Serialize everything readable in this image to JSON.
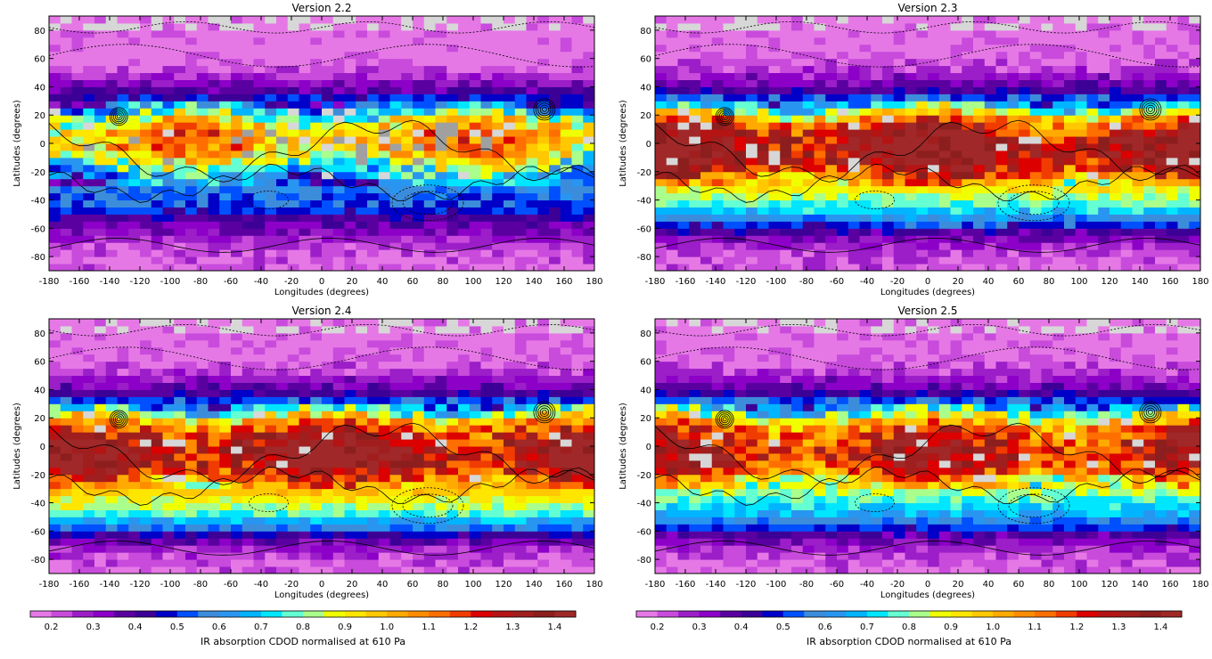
{
  "figure": {
    "colorbar_label": "IR absorption CDOD normalised at 610 Pa",
    "colorbar_ticks": [
      "0.2",
      "0.3",
      "0.4",
      "0.5",
      "0.6",
      "0.7",
      "0.8",
      "0.9",
      "1.0",
      "1.1",
      "1.2",
      "1.3",
      "1.4"
    ],
    "colorbar_levels": [
      0.15,
      0.2,
      0.25,
      0.3,
      0.35,
      0.4,
      0.45,
      0.5,
      0.55,
      0.6,
      0.65,
      0.7,
      0.75,
      0.8,
      0.85,
      0.9,
      0.95,
      1.0,
      1.05,
      1.1,
      1.15,
      1.2,
      1.25,
      1.3,
      1.35,
      1.4,
      1.5
    ],
    "colors": [
      "#e678e6",
      "#c84bdc",
      "#9b1ec8",
      "#8c00c8",
      "#5a00a0",
      "#3c0096",
      "#0000c8",
      "#0050ff",
      "#3c8cdc",
      "#2896f0",
      "#00b4ff",
      "#00e6ff",
      "#64ffd2",
      "#aaff8c",
      "#f0ff00",
      "#ffe600",
      "#ffc800",
      "#ffaa00",
      "#ff8c00",
      "#ff6e00",
      "#f03c00",
      "#dc0000",
      "#b41414",
      "#a01e1e",
      "#8c1e1e",
      "#a02828"
    ],
    "missing_color": "#d7d7d7",
    "missing_dark_color": "#a0a0a0"
  },
  "chart_data": [
    {
      "type": "heatmap",
      "title": "Version 2.2",
      "xlabel": "Longitudes (degrees)",
      "ylabel": "Latitudes (degrees)",
      "xlim": [
        -180,
        180
      ],
      "ylim": [
        -90,
        90
      ],
      "xticks": [
        "-180",
        "-160",
        "-140",
        "-120",
        "-100",
        "-80",
        "-60",
        "-40",
        "-20",
        "0",
        "20",
        "40",
        "60",
        "80",
        "100",
        "120",
        "140",
        "160",
        "180"
      ],
      "yticks": [
        "-80",
        "-60",
        "-40",
        "-20",
        "0",
        "20",
        "40",
        "60",
        "80"
      ],
      "lat_profile": [
        {
          "lat": 85,
          "value": 0.17
        },
        {
          "lat": 75,
          "value": 0.17
        },
        {
          "lat": 65,
          "value": 0.17
        },
        {
          "lat": 55,
          "value": 0.18
        },
        {
          "lat": 45,
          "value": 0.3
        },
        {
          "lat": 35,
          "value": 0.42
        },
        {
          "lat": 25,
          "value": 0.62
        },
        {
          "lat": 15,
          "value": 0.95
        },
        {
          "lat": 5,
          "value": 1.05
        },
        {
          "lat": -5,
          "value": 1.0
        },
        {
          "lat": -15,
          "value": 0.8
        },
        {
          "lat": -25,
          "value": 0.6
        },
        {
          "lat": -35,
          "value": 0.55
        },
        {
          "lat": -45,
          "value": 0.52
        },
        {
          "lat": -55,
          "value": 0.38
        },
        {
          "lat": -65,
          "value": 0.3
        },
        {
          "lat": -75,
          "value": 0.22
        },
        {
          "lat": -85,
          "value": 0.2
        }
      ]
    },
    {
      "type": "heatmap",
      "title": "Version 2.3",
      "xlabel": "Longitudes (degrees)",
      "ylabel": "Latitudes (degrees)",
      "xlim": [
        -180,
        180
      ],
      "ylim": [
        -90,
        90
      ],
      "xticks": [
        "-180",
        "-160",
        "-140",
        "-120",
        "-100",
        "-80",
        "-60",
        "-40",
        "-20",
        "0",
        "20",
        "40",
        "60",
        "80",
        "100",
        "120",
        "140",
        "160",
        "180"
      ],
      "yticks": [
        "-80",
        "-60",
        "-40",
        "-20",
        "0",
        "20",
        "40",
        "60",
        "80"
      ],
      "lat_profile": [
        {
          "lat": 85,
          "value": 0.16
        },
        {
          "lat": 75,
          "value": 0.17
        },
        {
          "lat": 65,
          "value": 0.18
        },
        {
          "lat": 55,
          "value": 0.22
        },
        {
          "lat": 45,
          "value": 0.32
        },
        {
          "lat": 35,
          "value": 0.45
        },
        {
          "lat": 25,
          "value": 0.75
        },
        {
          "lat": 15,
          "value": 1.15
        },
        {
          "lat": 5,
          "value": 1.32
        },
        {
          "lat": -5,
          "value": 1.38
        },
        {
          "lat": -15,
          "value": 1.3
        },
        {
          "lat": -25,
          "value": 1.05
        },
        {
          "lat": -35,
          "value": 0.85
        },
        {
          "lat": -45,
          "value": 0.75
        },
        {
          "lat": -55,
          "value": 0.55
        },
        {
          "lat": -65,
          "value": 0.35
        },
        {
          "lat": -75,
          "value": 0.25
        },
        {
          "lat": -85,
          "value": 0.2
        }
      ]
    },
    {
      "type": "heatmap",
      "title": "Version 2.4",
      "xlabel": "Longitudes (degrees)",
      "ylabel": "Latitudes (degrees)",
      "xlim": [
        -180,
        180
      ],
      "ylim": [
        -90,
        90
      ],
      "xticks": [
        "-180",
        "-160",
        "-140",
        "-120",
        "-100",
        "-80",
        "-60",
        "-40",
        "-20",
        "0",
        "20",
        "40",
        "60",
        "80",
        "100",
        "120",
        "140",
        "160",
        "180"
      ],
      "yticks": [
        "-80",
        "-60",
        "-40",
        "-20",
        "0",
        "20",
        "40",
        "60",
        "80"
      ],
      "lat_profile": [
        {
          "lat": 85,
          "value": 0.16
        },
        {
          "lat": 75,
          "value": 0.17
        },
        {
          "lat": 65,
          "value": 0.18
        },
        {
          "lat": 55,
          "value": 0.22
        },
        {
          "lat": 45,
          "value": 0.32
        },
        {
          "lat": 35,
          "value": 0.45
        },
        {
          "lat": 25,
          "value": 0.75
        },
        {
          "lat": 15,
          "value": 1.12
        },
        {
          "lat": 5,
          "value": 1.3
        },
        {
          "lat": -5,
          "value": 1.38
        },
        {
          "lat": -15,
          "value": 1.32
        },
        {
          "lat": -25,
          "value": 1.08
        },
        {
          "lat": -35,
          "value": 0.92
        },
        {
          "lat": -45,
          "value": 0.82
        },
        {
          "lat": -55,
          "value": 0.62
        },
        {
          "lat": -65,
          "value": 0.38
        },
        {
          "lat": -75,
          "value": 0.26
        },
        {
          "lat": -85,
          "value": 0.2
        }
      ]
    },
    {
      "type": "heatmap",
      "title": "Version 2.5",
      "xlabel": "Longitudes (degrees)",
      "ylabel": "Latitudes (degrees)",
      "xlim": [
        -180,
        180
      ],
      "ylim": [
        -90,
        90
      ],
      "xticks": [
        "-180",
        "-160",
        "-140",
        "-120",
        "-100",
        "-80",
        "-60",
        "-40",
        "-20",
        "0",
        "20",
        "40",
        "60",
        "80",
        "100",
        "120",
        "140",
        "160",
        "180"
      ],
      "yticks": [
        "-80",
        "-60",
        "-40",
        "-20",
        "0",
        "20",
        "40",
        "60",
        "80"
      ],
      "lat_profile": [
        {
          "lat": 85,
          "value": 0.16
        },
        {
          "lat": 75,
          "value": 0.17
        },
        {
          "lat": 65,
          "value": 0.18
        },
        {
          "lat": 55,
          "value": 0.22
        },
        {
          "lat": 45,
          "value": 0.32
        },
        {
          "lat": 35,
          "value": 0.45
        },
        {
          "lat": 25,
          "value": 0.72
        },
        {
          "lat": 15,
          "value": 1.08
        },
        {
          "lat": 5,
          "value": 1.22
        },
        {
          "lat": -5,
          "value": 1.3
        },
        {
          "lat": -15,
          "value": 1.2
        },
        {
          "lat": -25,
          "value": 0.95
        },
        {
          "lat": -35,
          "value": 0.78
        },
        {
          "lat": -45,
          "value": 0.7
        },
        {
          "lat": -55,
          "value": 0.55
        },
        {
          "lat": -65,
          "value": 0.35
        },
        {
          "lat": -75,
          "value": 0.25
        },
        {
          "lat": -85,
          "value": 0.2
        }
      ]
    }
  ]
}
